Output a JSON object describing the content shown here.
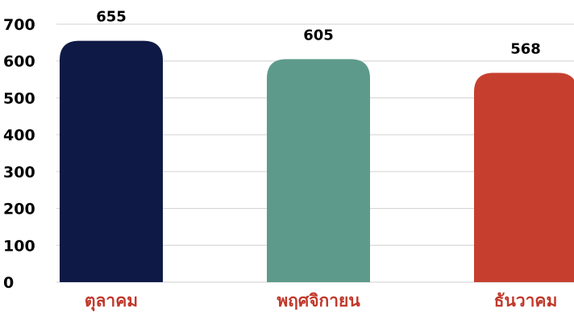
{
  "chart_data": {
    "type": "bar",
    "categories": [
      "ตุลาคม",
      "พฤศจิกายน",
      "ธันวาคม"
    ],
    "values": [
      655,
      605,
      568
    ],
    "data_labels": [
      "655",
      "605",
      "568"
    ],
    "y_ticks": [
      "0",
      "100",
      "200",
      "300",
      "400",
      "500",
      "600",
      "700"
    ],
    "ylim": [
      0,
      700
    ],
    "grid": true,
    "legend": "none",
    "colors": [
      "#0e1a45",
      "#5e9a8b",
      "#c63f2e"
    ],
    "category_label_color": "#c0392b",
    "title": "",
    "xlabel": "",
    "ylabel": ""
  }
}
